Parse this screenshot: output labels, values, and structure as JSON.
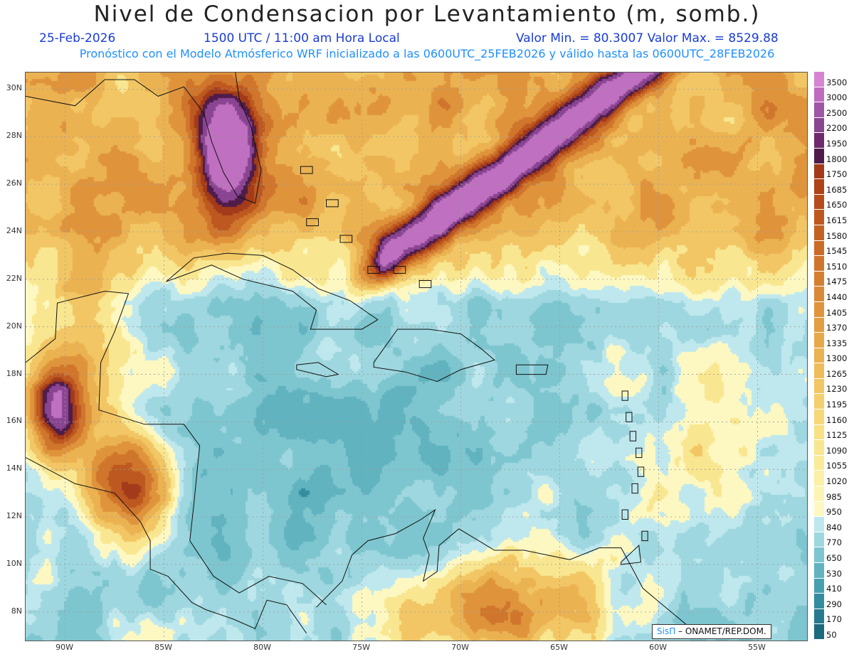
{
  "header": {
    "title": "Nivel de Condensacion por Levantamiento (m, somb.)",
    "date": "25-Feb-2026",
    "time": "1500 UTC / 11:00 am Hora Local",
    "min_max": "Valor Min. = 80.3007  Valor Max. = 8529.88",
    "forecast_note": "Pronóstico con el Modelo Atmósferico WRF inicializado a las 0600UTC_25FEB2026 y válido hasta las  0600UTC_28FEB2026"
  },
  "map": {
    "lon_range": [
      -92.0,
      -52.5
    ],
    "lat_range": [
      6.8,
      30.7
    ],
    "lat_ticks": [
      "30N",
      "28N",
      "26N",
      "24N",
      "22N",
      "20N",
      "18N",
      "16N",
      "14N",
      "12N",
      "10N",
      "8N"
    ],
    "lat_values": [
      30,
      28,
      26,
      24,
      22,
      20,
      18,
      16,
      14,
      12,
      10,
      8
    ],
    "lon_ticks": [
      "90W",
      "85W",
      "80W",
      "75W",
      "70W",
      "65W",
      "60W",
      "55W"
    ],
    "lon_values": [
      -90,
      -85,
      -80,
      -75,
      -70,
      -65,
      -60,
      -55
    ]
  },
  "legend": {
    "levels": [
      "3500",
      "3000",
      "2500",
      "2200",
      "1950",
      "1800",
      "1750",
      "1685",
      "1650",
      "1615",
      "1580",
      "1545",
      "1510",
      "1475",
      "1440",
      "1405",
      "1370",
      "1335",
      "1300",
      "1265",
      "1230",
      "1195",
      "1160",
      "1125",
      "1090",
      "1055",
      "1020",
      "985",
      "950",
      "840",
      "770",
      "650",
      "530",
      "410",
      "290",
      "170",
      "50"
    ],
    "colors": [
      "#d884d4",
      "#bf6cbf",
      "#a056a6",
      "#8a4592",
      "#6e2a6c",
      "#4f1c4a",
      "#a33a1a",
      "#ad4418",
      "#b54e1c",
      "#bd5820",
      "#c46224",
      "#ca6c28",
      "#d0762c",
      "#d58030",
      "#da8a36",
      "#df943c",
      "#e39e42",
      "#e7a84a",
      "#ebb252",
      "#efbc5a",
      "#f2c664",
      "#f4cf6e",
      "#f6d878",
      "#f8e084",
      "#f9e690",
      "#faeb9a",
      "#fbf0a6",
      "#fcf4b2",
      "#fdf8c2",
      "#bfe8ee",
      "#9ed7df",
      "#7ec6cf",
      "#60b3bf",
      "#46a0ae",
      "#338d9e",
      "#257b8d",
      "#1b6a7d"
    ]
  },
  "credit": {
    "sis": "SisΠ",
    "text": " – ONAMET/REP.DOM."
  }
}
